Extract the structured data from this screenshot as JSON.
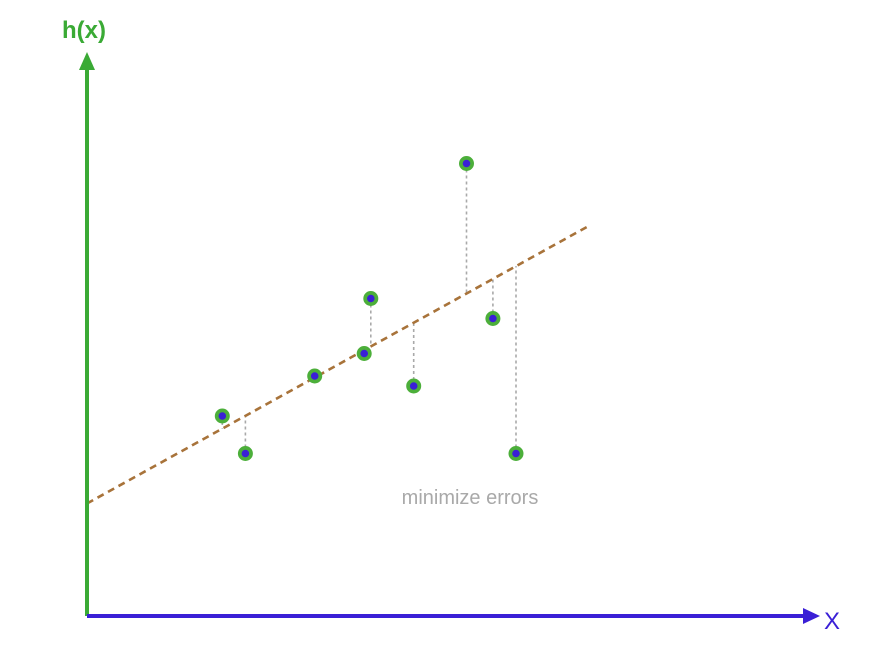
{
  "chart_data": {
    "type": "scatter",
    "ylabel": "h(x)",
    "xlabel": "X",
    "annotation": "minimize errors",
    "xlim": [
      0,
      100
    ],
    "ylim": [
      0,
      100
    ],
    "grid": false,
    "points": [
      {
        "x": 20.5,
        "y": 40.0
      },
      {
        "x": 24.0,
        "y": 32.5
      },
      {
        "x": 34.5,
        "y": 48.0
      },
      {
        "x": 42.0,
        "y": 52.5
      },
      {
        "x": 43.0,
        "y": 63.5
      },
      {
        "x": 49.5,
        "y": 46.0
      },
      {
        "x": 57.5,
        "y": 90.5
      },
      {
        "x": 61.5,
        "y": 59.5
      },
      {
        "x": 65.0,
        "y": 32.5
      }
    ],
    "fit_line": {
      "x": [
        0,
        76
      ],
      "y": [
        22.5,
        78.0
      ],
      "style": "dashed"
    },
    "colors": {
      "y_axis": "#3aaa35",
      "x_axis": "#3a1fd6",
      "point_fill": "#3a1fd6",
      "point_ring": "#4caf3a",
      "fit_line": "#a8733a",
      "residual": "#a9a9a9",
      "annotation": "#a9a9a9"
    }
  }
}
